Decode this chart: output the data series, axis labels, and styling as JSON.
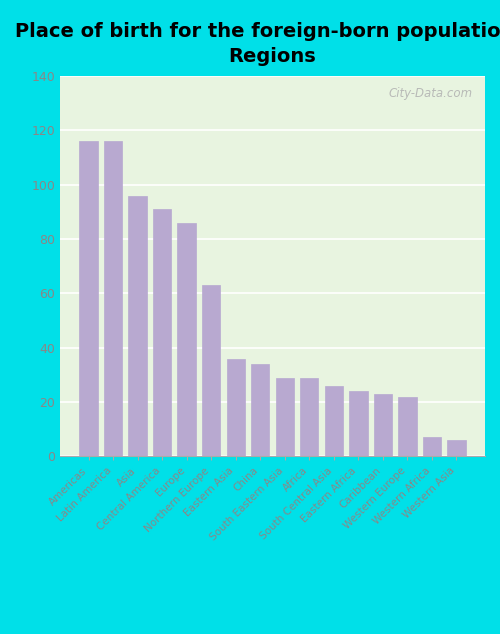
{
  "title": "Place of birth for the foreign-born population -\nRegions",
  "categories": [
    "Americas",
    "Latin America",
    "Asia",
    "Central America",
    "Europe",
    "Northern Europe",
    "Eastern Asia",
    "China",
    "South Eastern Asia",
    "Africa",
    "South Central Asia",
    "Eastern Africa",
    "Caribbean",
    "Western Europe",
    "Western Africa",
    "Western Asia"
  ],
  "values": [
    116,
    116,
    96,
    91,
    86,
    63,
    36,
    34,
    29,
    29,
    26,
    24,
    23,
    22,
    7,
    6
  ],
  "bar_color": "#b8a9d0",
  "bg_color_outer": "#00e0e8",
  "bg_color_plot": "#e8f4e0",
  "ylim": [
    0,
    140
  ],
  "yticks": [
    0,
    20,
    40,
    60,
    80,
    100,
    120,
    140
  ],
  "title_fontsize": 14,
  "tick_label_color": "#888888",
  "watermark_text": "City-Data.com"
}
